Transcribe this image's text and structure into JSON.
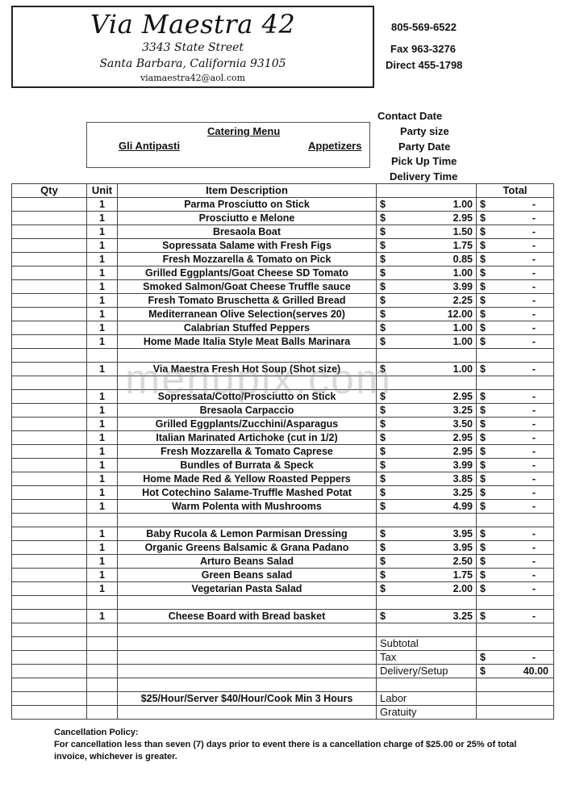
{
  "header": {
    "title": "Via Maestra 42",
    "address1": "3343 State Street",
    "address2": "Santa Barbara, California 93105",
    "email": "viamaestra42@aol.com"
  },
  "contact": {
    "phone": "805-569-6522",
    "fax": "Fax 963-3276",
    "direct": "Direct  455-1798"
  },
  "event_fields": [
    "Contact Date",
    "Party size",
    "Party Date",
    "Pick Up Time",
    "Delivery Time"
  ],
  "menu_box": {
    "title": "Catering Menu",
    "left": "Gli Antipasti",
    "right": "Appetizers"
  },
  "table": {
    "headers": {
      "qty": "Qty",
      "unit": "Unit",
      "desc": "Item Description",
      "price": "",
      "total": "Total"
    },
    "rows": [
      {
        "unit": "1",
        "desc": "Parma Prosciutto on Stick",
        "price": "1.00",
        "total": "-"
      },
      {
        "unit": "1",
        "desc": "Prosciutto e Melone",
        "price": "2.95",
        "total": "-"
      },
      {
        "unit": "1",
        "desc": "Bresaola Boat",
        "price": "1.50",
        "total": "-"
      },
      {
        "unit": "1",
        "desc": "Sopressata Salame with Fresh Figs",
        "price": "1.75",
        "total": "-"
      },
      {
        "unit": "1",
        "desc": "Fresh Mozzarella & Tomato on Pick",
        "price": "0.85",
        "total": "-"
      },
      {
        "unit": "1",
        "desc": "Grilled Eggplants/Goat Cheese SD Tomato",
        "price": "1.00",
        "total": "-"
      },
      {
        "unit": "1",
        "desc": "Smoked Salmon/Goat Cheese Truffle sauce",
        "price": "3.99",
        "total": "-"
      },
      {
        "unit": "1",
        "desc": "Fresh Tomato Bruschetta & Grilled Bread",
        "price": "2.25",
        "total": "-"
      },
      {
        "unit": "1",
        "desc": "Mediterranean Olive Selection(serves 20)",
        "price": "12.00",
        "total": "-"
      },
      {
        "unit": "1",
        "desc": "Calabrian Stuffed Peppers",
        "price": "1.00",
        "total": "-"
      },
      {
        "unit": "1",
        "desc": "Home Made Italia Style Meat Balls Marinara",
        "price": "1.00",
        "total": "-"
      },
      {},
      {
        "unit": "1",
        "desc": "Via Maestra Fresh Hot Soup  (Shot size)",
        "price": "1.00",
        "total": "-"
      },
      {},
      {
        "unit": "1",
        "desc": "Sopressata/Cotto/Prosciutto on Stick",
        "price": "2.95",
        "total": "-"
      },
      {
        "unit": "1",
        "desc": "Bresaola Carpaccio",
        "price": "3.25",
        "total": "-"
      },
      {
        "unit": "1",
        "desc": "Grilled Eggplants/Zucchini/Asparagus",
        "price": "3.50",
        "total": "-"
      },
      {
        "unit": "1",
        "desc": "Italian Marinated Artichoke (cut in 1/2)",
        "price": "2.95",
        "total": "-"
      },
      {
        "unit": "1",
        "desc": "Fresh Mozzarella & Tomato Caprese",
        "price": "2.95",
        "total": "-"
      },
      {
        "unit": "1",
        "desc": "Bundles of Burrata & Speck",
        "price": "3.99",
        "total": "-"
      },
      {
        "unit": "1",
        "desc": "Home Made Red & Yellow Roasted Peppers",
        "price": "3.85",
        "total": "-"
      },
      {
        "unit": "1",
        "desc": "Hot Cotechino Salame-Truffle Mashed Potat",
        "price": "3.25",
        "total": "-"
      },
      {
        "unit": "1",
        "desc": "Warm Polenta with Mushrooms",
        "price": "4.99",
        "total": "-"
      },
      {},
      {
        "unit": "1",
        "desc": "Baby Rucola & Lemon Parmisan Dressing",
        "price": "3.95",
        "total": "-"
      },
      {
        "unit": "1",
        "desc": "Organic Greens Balsamic & Grana Padano",
        "price": "3.95",
        "total": "-"
      },
      {
        "unit": "1",
        "desc": "Arturo Beans Salad",
        "price": "2.50",
        "total": "-"
      },
      {
        "unit": "1",
        "desc": "Green Beans salad",
        "price": "1.75",
        "total": "-"
      },
      {
        "unit": "1",
        "desc": "Vegetarian Pasta Salad",
        "price": "2.00",
        "total": "-"
      },
      {},
      {
        "unit": "1",
        "desc": "Cheese Board with Bread basket",
        "price": "3.25",
        "total": "-"
      },
      {},
      {
        "label": "Subtotal"
      },
      {
        "label": "Tax",
        "total": "-"
      },
      {
        "label": "Delivery/Setup",
        "total": "40.00"
      },
      {},
      {
        "desc": "$25/Hour/Server $40/Hour/Cook Min 3 Hours",
        "label": "Labor"
      },
      {
        "label": "Gratuity"
      }
    ],
    "currency": "$"
  },
  "policy": {
    "title": "Cancellation Policy:",
    "line1": "For cancellation less than seven (7) days prior to event there is a cancellation charge of $25.00 or 25% of total",
    "line2": "invoice, whichever is greater."
  },
  "watermark": "menupix.com"
}
